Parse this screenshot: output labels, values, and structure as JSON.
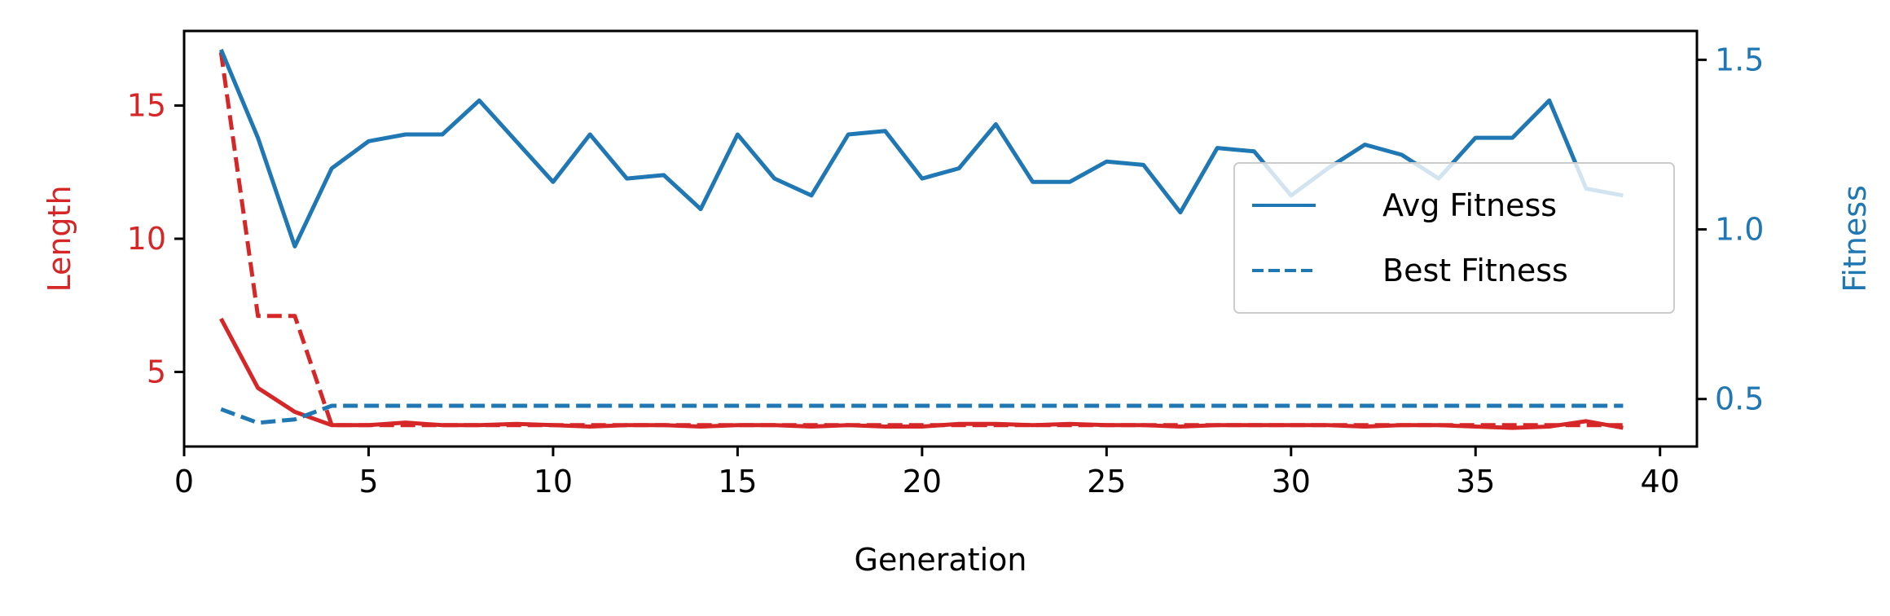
{
  "colors": {
    "length": "#d62728",
    "fitness": "#1f77b4",
    "axis": "#000000"
  },
  "chart_data": {
    "type": "line",
    "xlabel": "Generation",
    "ylabel_left": "Length",
    "ylabel_right": "Fitness",
    "xlim": [
      0,
      41
    ],
    "ylim_left": [
      2.2,
      17.8
    ],
    "ylim_right": [
      0.36,
      1.585
    ],
    "xticks": [
      0,
      5,
      10,
      15,
      20,
      25,
      30,
      35,
      40
    ],
    "yticks_left": [
      5,
      10,
      15
    ],
    "yticks_right": [
      0.5,
      1.0,
      1.5
    ],
    "yticks_right_labels": [
      "0.5",
      "1.0",
      "1.5"
    ],
    "grid": false,
    "legend": {
      "placement": "center-right",
      "entries": [
        "Avg Fitness",
        "Best Fitness"
      ]
    },
    "x": [
      1,
      2,
      3,
      4,
      5,
      6,
      7,
      8,
      9,
      10,
      11,
      12,
      13,
      14,
      15,
      16,
      17,
      18,
      19,
      20,
      21,
      22,
      23,
      24,
      25,
      26,
      27,
      28,
      29,
      30,
      31,
      32,
      33,
      34,
      35,
      36,
      37,
      38,
      39
    ],
    "series": [
      {
        "name": "Avg Fitness",
        "axis": "right",
        "style": "solid",
        "color": "#1f77b4",
        "values": [
          1.53,
          1.27,
          0.95,
          1.18,
          1.26,
          1.28,
          1.28,
          1.38,
          1.26,
          1.14,
          1.28,
          1.15,
          1.16,
          1.06,
          1.28,
          1.15,
          1.1,
          1.28,
          1.29,
          1.15,
          1.18,
          1.31,
          1.14,
          1.14,
          1.2,
          1.19,
          1.05,
          1.24,
          1.23,
          1.1,
          1.18,
          1.25,
          1.22,
          1.15,
          1.27,
          1.27,
          1.38,
          1.12,
          1.1
        ]
      },
      {
        "name": "Best Fitness",
        "axis": "right",
        "style": "dashed",
        "color": "#1f77b4",
        "values": [
          0.47,
          0.43,
          0.44,
          0.48,
          0.48,
          0.48,
          0.48,
          0.48,
          0.48,
          0.48,
          0.48,
          0.48,
          0.48,
          0.48,
          0.48,
          0.48,
          0.48,
          0.48,
          0.48,
          0.48,
          0.48,
          0.48,
          0.48,
          0.48,
          0.48,
          0.48,
          0.48,
          0.48,
          0.48,
          0.48,
          0.48,
          0.48,
          0.48,
          0.48,
          0.48,
          0.48,
          0.48,
          0.48,
          0.48
        ]
      },
      {
        "axis": "left",
        "style": "solid",
        "color": "#d62728",
        "values": [
          7.0,
          4.4,
          3.5,
          3.0,
          3.0,
          3.1,
          3.0,
          3.0,
          3.05,
          3.0,
          2.95,
          3.0,
          3.0,
          2.95,
          3.0,
          3.0,
          2.95,
          3.0,
          2.95,
          2.95,
          3.05,
          3.05,
          3.0,
          3.05,
          3.0,
          3.0,
          2.95,
          3.0,
          3.0,
          3.0,
          3.0,
          2.95,
          3.0,
          3.0,
          2.95,
          2.9,
          2.95,
          3.15,
          2.9
        ]
      },
      {
        "axis": "left",
        "style": "dashed",
        "color": "#d62728",
        "values": [
          17.0,
          7.1,
          7.1,
          3.0,
          3.0,
          3.0,
          3.0,
          3.0,
          3.0,
          3.0,
          3.0,
          3.0,
          3.0,
          3.0,
          3.0,
          3.0,
          3.0,
          3.0,
          3.0,
          3.0,
          3.0,
          3.0,
          3.0,
          3.0,
          3.0,
          3.0,
          3.0,
          3.0,
          3.0,
          3.0,
          3.0,
          3.0,
          3.0,
          3.0,
          3.0,
          3.0,
          3.0,
          3.0,
          3.0
        ]
      }
    ]
  }
}
